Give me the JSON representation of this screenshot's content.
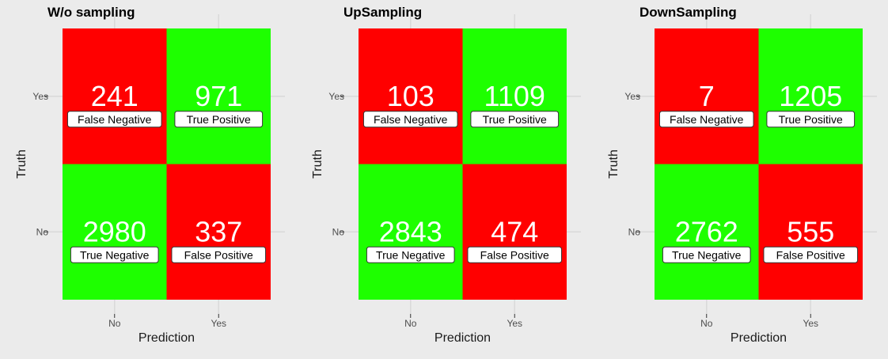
{
  "chart_data": [
    {
      "type": "heatmap",
      "title": "W/o sampling",
      "xlabel": "Prediction",
      "ylabel": "Truth",
      "x_categories": [
        "No",
        "Yes"
      ],
      "y_categories": [
        "No",
        "Yes"
      ],
      "cells": [
        {
          "prediction": "No",
          "truth": "Yes",
          "value": 241,
          "label": "False Negative",
          "color": "#ff0000"
        },
        {
          "prediction": "Yes",
          "truth": "Yes",
          "value": 971,
          "label": "True Positive",
          "color": "#1eff00"
        },
        {
          "prediction": "No",
          "truth": "No",
          "value": 2980,
          "label": "True Negative",
          "color": "#1eff00"
        },
        {
          "prediction": "Yes",
          "truth": "No",
          "value": 337,
          "label": "False Positive",
          "color": "#ff0000"
        }
      ]
    },
    {
      "type": "heatmap",
      "title": "UpSampling",
      "xlabel": "Prediction",
      "ylabel": "Truth",
      "x_categories": [
        "No",
        "Yes"
      ],
      "y_categories": [
        "No",
        "Yes"
      ],
      "cells": [
        {
          "prediction": "No",
          "truth": "Yes",
          "value": 103,
          "label": "False Negative",
          "color": "#ff0000"
        },
        {
          "prediction": "Yes",
          "truth": "Yes",
          "value": 1109,
          "label": "True Positive",
          "color": "#1eff00"
        },
        {
          "prediction": "No",
          "truth": "No",
          "value": 2843,
          "label": "True Negative",
          "color": "#1eff00"
        },
        {
          "prediction": "Yes",
          "truth": "No",
          "value": 474,
          "label": "False Positive",
          "color": "#ff0000"
        }
      ]
    },
    {
      "type": "heatmap",
      "title": "DownSampling",
      "xlabel": "Prediction",
      "ylabel": "Truth",
      "x_categories": [
        "No",
        "Yes"
      ],
      "y_categories": [
        "No",
        "Yes"
      ],
      "cells": [
        {
          "prediction": "No",
          "truth": "Yes",
          "value": 7,
          "label": "False Negative",
          "color": "#ff0000"
        },
        {
          "prediction": "Yes",
          "truth": "Yes",
          "value": 1205,
          "label": "True Positive",
          "color": "#1eff00"
        },
        {
          "prediction": "No",
          "truth": "No",
          "value": 2762,
          "label": "True Negative",
          "color": "#1eff00"
        },
        {
          "prediction": "Yes",
          "truth": "No",
          "value": 555,
          "label": "False Positive",
          "color": "#ff0000"
        }
      ]
    }
  ]
}
